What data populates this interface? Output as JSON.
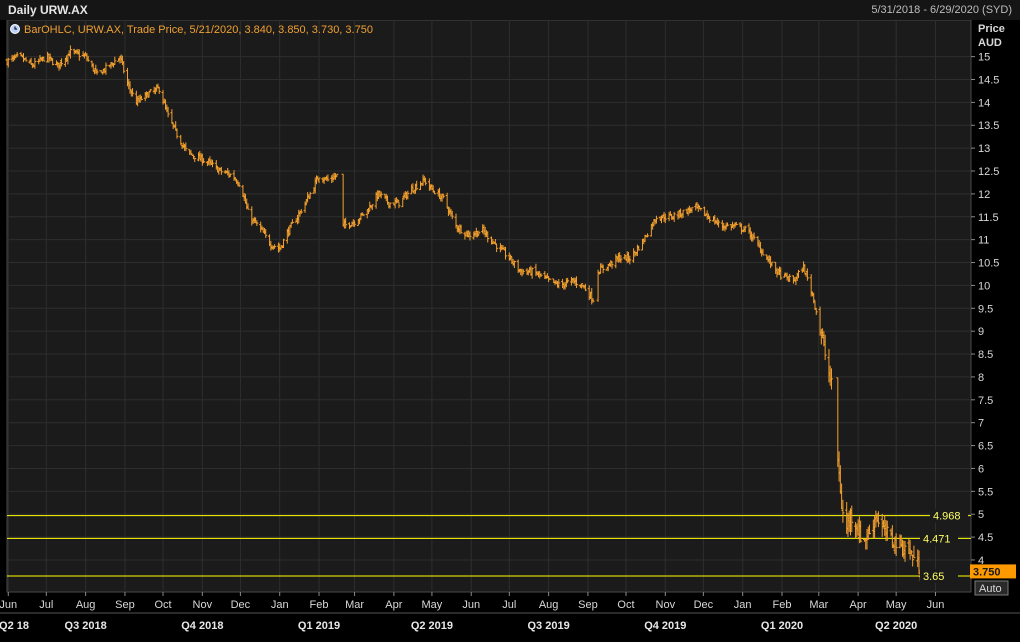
{
  "header": {
    "title": "Daily URW.AX",
    "date_range": "5/31/2018 - 6/29/2020 (SYD)"
  },
  "chart_data": {
    "type": "ohlc",
    "legend": "BarOHLC, URW.AX, Trade Price, 5/21/2020, 3.840, 3.850, 3.730, 3.750",
    "y_axis_title": [
      "Price",
      "AUD"
    ],
    "ylim": [
      3.3,
      15.8
    ],
    "yticks": [
      4,
      4.5,
      5,
      5.5,
      6,
      6.5,
      7,
      7.5,
      8,
      8.5,
      9,
      9.5,
      10,
      10.5,
      11,
      11.5,
      12,
      12.5,
      13,
      13.5,
      14,
      14.5,
      15
    ],
    "x_range": [
      "2018-05-31",
      "2020-06-29"
    ],
    "month_ticks": [
      {
        "date": "2018-06-01",
        "label": "Jun"
      },
      {
        "date": "2018-07-01",
        "label": "Jul"
      },
      {
        "date": "2018-08-01",
        "label": "Aug"
      },
      {
        "date": "2018-09-01",
        "label": "Sep"
      },
      {
        "date": "2018-10-01",
        "label": "Oct"
      },
      {
        "date": "2018-11-01",
        "label": "Nov"
      },
      {
        "date": "2018-12-01",
        "label": "Dec"
      },
      {
        "date": "2019-01-01",
        "label": "Jan"
      },
      {
        "date": "2019-02-01",
        "label": "Feb"
      },
      {
        "date": "2019-03-01",
        "label": "Mar"
      },
      {
        "date": "2019-04-01",
        "label": "Apr"
      },
      {
        "date": "2019-05-01",
        "label": "May"
      },
      {
        "date": "2019-06-01",
        "label": "Jun"
      },
      {
        "date": "2019-07-01",
        "label": "Jul"
      },
      {
        "date": "2019-08-01",
        "label": "Aug"
      },
      {
        "date": "2019-09-01",
        "label": "Sep"
      },
      {
        "date": "2019-10-01",
        "label": "Oct"
      },
      {
        "date": "2019-11-01",
        "label": "Nov"
      },
      {
        "date": "2019-12-01",
        "label": "Dec"
      },
      {
        "date": "2020-01-01",
        "label": "Jan"
      },
      {
        "date": "2020-02-01",
        "label": "Feb"
      },
      {
        "date": "2020-03-01",
        "label": "Mar"
      },
      {
        "date": "2020-04-01",
        "label": "Apr"
      },
      {
        "date": "2020-05-01",
        "label": "May"
      },
      {
        "date": "2020-06-01",
        "label": "Jun"
      }
    ],
    "quarter_ticks": [
      {
        "date": "2018-06-01",
        "label": "Q2 18"
      },
      {
        "date": "2018-08-01",
        "label": "Q3 2018"
      },
      {
        "date": "2018-11-01",
        "label": "Q4 2018"
      },
      {
        "date": "2019-02-01",
        "label": "Q1 2019"
      },
      {
        "date": "2019-05-01",
        "label": "Q2 2019"
      },
      {
        "date": "2019-08-01",
        "label": "Q3 2019"
      },
      {
        "date": "2019-11-01",
        "label": "Q4 2019"
      },
      {
        "date": "2020-02-01",
        "label": "Q1 2020"
      },
      {
        "date": "2020-05-01",
        "label": "Q2 2020"
      }
    ],
    "horizontal_lines": [
      {
        "value": 4.968,
        "label": "4.968"
      },
      {
        "value": 4.471,
        "label": "4.471"
      },
      {
        "value": 3.65,
        "label": "3.65"
      }
    ],
    "last_price": {
      "value": 3.75,
      "label": "3.750"
    },
    "axis_mode": "Auto",
    "price_path": [
      [
        "2018-05-31",
        14.9
      ],
      [
        "2018-06-10",
        15.0
      ],
      [
        "2018-06-20",
        14.8
      ],
      [
        "2018-07-01",
        15.0
      ],
      [
        "2018-07-10",
        14.8
      ],
      [
        "2018-07-20",
        15.1
      ],
      [
        "2018-08-01",
        15.0
      ],
      [
        "2018-08-10",
        14.6
      ],
      [
        "2018-08-20",
        14.8
      ],
      [
        "2018-08-28",
        15.0
      ],
      [
        "2018-09-03",
        14.4
      ],
      [
        "2018-09-10",
        14.0
      ],
      [
        "2018-09-20",
        14.2
      ],
      [
        "2018-09-28",
        14.3
      ],
      [
        "2018-10-05",
        13.7
      ],
      [
        "2018-10-12",
        13.3
      ],
      [
        "2018-10-20",
        12.9
      ],
      [
        "2018-10-28",
        12.8
      ],
      [
        "2018-11-05",
        12.7
      ],
      [
        "2018-11-15",
        12.5
      ],
      [
        "2018-11-25",
        12.4
      ],
      [
        "2018-12-01",
        12.2
      ],
      [
        "2018-12-08",
        11.5
      ],
      [
        "2018-12-15",
        11.3
      ],
      [
        "2018-12-25",
        10.9
      ],
      [
        "2019-01-01",
        10.8
      ],
      [
        "2019-01-08",
        11.2
      ],
      [
        "2019-01-15",
        11.5
      ],
      [
        "2019-01-25",
        12.0
      ],
      [
        "2019-02-01",
        12.4
      ],
      [
        "2019-02-08",
        12.3
      ],
      [
        "2019-02-15",
        12.4
      ],
      [
        "2019-02-20",
        11.3
      ],
      [
        "2019-03-01",
        11.4
      ],
      [
        "2019-03-10",
        11.6
      ],
      [
        "2019-03-20",
        12.0
      ],
      [
        "2019-03-28",
        11.8
      ],
      [
        "2019-04-05",
        11.8
      ],
      [
        "2019-04-15",
        12.1
      ],
      [
        "2019-04-25",
        12.3
      ],
      [
        "2019-05-01",
        12.1
      ],
      [
        "2019-05-10",
        11.9
      ],
      [
        "2019-05-20",
        11.3
      ],
      [
        "2019-05-30",
        11.1
      ],
      [
        "2019-06-10",
        11.2
      ],
      [
        "2019-06-20",
        10.9
      ],
      [
        "2019-07-01",
        10.6
      ],
      [
        "2019-07-10",
        10.3
      ],
      [
        "2019-07-20",
        10.3
      ],
      [
        "2019-08-01",
        10.1
      ],
      [
        "2019-08-10",
        10.0
      ],
      [
        "2019-08-20",
        10.1
      ],
      [
        "2019-08-28",
        10.0
      ],
      [
        "2019-09-05",
        9.7
      ],
      [
        "2019-09-08",
        10.3
      ],
      [
        "2019-09-15",
        10.4
      ],
      [
        "2019-09-25",
        10.6
      ],
      [
        "2019-10-05",
        10.6
      ],
      [
        "2019-10-15",
        11.0
      ],
      [
        "2019-10-25",
        11.5
      ],
      [
        "2019-11-05",
        11.5
      ],
      [
        "2019-11-15",
        11.6
      ],
      [
        "2019-11-25",
        11.7
      ],
      [
        "2019-12-05",
        11.5
      ],
      [
        "2019-12-15",
        11.3
      ],
      [
        "2019-12-25",
        11.3
      ],
      [
        "2020-01-05",
        11.2
      ],
      [
        "2020-01-15",
        10.8
      ],
      [
        "2020-01-25",
        10.4
      ],
      [
        "2020-02-01",
        10.2
      ],
      [
        "2020-02-10",
        10.1
      ],
      [
        "2020-02-18",
        10.4
      ],
      [
        "2020-02-25",
        9.8
      ],
      [
        "2020-03-01",
        9.2
      ],
      [
        "2020-03-06",
        8.5
      ],
      [
        "2020-03-11",
        7.8
      ],
      [
        "2020-03-16",
        6.2
      ],
      [
        "2020-03-19",
        5.2
      ],
      [
        "2020-03-22",
        4.6
      ],
      [
        "2020-03-26",
        5.0
      ],
      [
        "2020-03-30",
        4.8
      ],
      [
        "2020-04-05",
        4.4
      ],
      [
        "2020-04-10",
        4.6
      ],
      [
        "2020-04-15",
        5.0
      ],
      [
        "2020-04-20",
        4.7
      ],
      [
        "2020-04-25",
        4.5
      ],
      [
        "2020-05-01",
        4.4
      ],
      [
        "2020-05-06",
        4.3
      ],
      [
        "2020-05-11",
        4.2
      ],
      [
        "2020-05-16",
        4.0
      ],
      [
        "2020-05-21",
        3.75
      ]
    ]
  },
  "colors": {
    "background": "#1b1b1b",
    "bars": "#f5a12d",
    "hlines": "#ffff00",
    "last_price_bg": "#ff9900"
  }
}
